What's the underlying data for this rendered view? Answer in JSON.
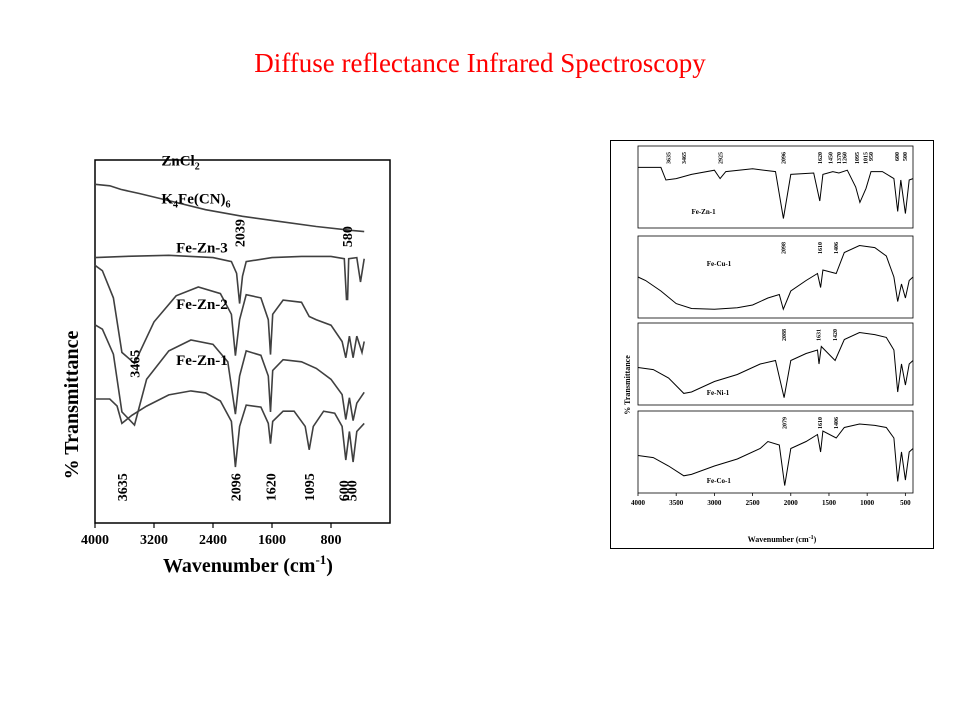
{
  "slide": {
    "title": "Diffuse reflectance Infrared Spectroscopy"
  },
  "chart_data": [
    {
      "type": "line",
      "xlabel": "Wavenumber (cm",
      "xlabel_sup": "-1",
      "xlabel_close": ")",
      "ylabel": "% Transmittance",
      "xlim": [
        4000,
        0
      ],
      "x_ticks": [
        4000,
        3200,
        2400,
        1600,
        800
      ],
      "curve_color": "#404040",
      "series": [
        {
          "name": "ZnCl",
          "name_sub": "2",
          "offset": 0.8,
          "amp": 0.14,
          "points": [
            [
              4000,
              0.95
            ],
            [
              3800,
              0.92
            ],
            [
              3650,
              0.85
            ],
            [
              3400,
              0.77
            ],
            [
              3000,
              0.63
            ],
            [
              2500,
              0.45
            ],
            [
              2000,
              0.32
            ],
            [
              1500,
              0.22
            ],
            [
              1000,
              0.12
            ],
            [
              500,
              0.04
            ],
            [
              350,
              0.02
            ]
          ]
        },
        {
          "name": "K",
          "name_sub": "4",
          "name_rest": "Fe(CN)",
          "name_sub2": "6",
          "offset": 0.6,
          "amp": 0.16,
          "points": [
            [
              4000,
              0.82
            ],
            [
              3600,
              0.84
            ],
            [
              3000,
              0.86
            ],
            [
              2400,
              0.82
            ],
            [
              2150,
              0.75
            ],
            [
              2080,
              0.55
            ],
            [
              2039,
              0.03
            ],
            [
              2000,
              0.5
            ],
            [
              1950,
              0.75
            ],
            [
              1600,
              0.82
            ],
            [
              1200,
              0.84
            ],
            [
              800,
              0.84
            ],
            [
              620,
              0.8
            ],
            [
              590,
              0.1
            ],
            [
              575,
              0.1
            ],
            [
              560,
              0.8
            ],
            [
              450,
              0.82
            ],
            [
              400,
              0.4
            ],
            [
              350,
              0.8
            ]
          ]
        },
        {
          "name": "Fe-Zn-3",
          "offset": 0.44,
          "amp": 0.3,
          "points": [
            [
              4000,
              0.9
            ],
            [
              3900,
              0.85
            ],
            [
              3750,
              0.6
            ],
            [
              3635,
              0.1
            ],
            [
              3465,
              0.0
            ],
            [
              3200,
              0.38
            ],
            [
              2900,
              0.62
            ],
            [
              2600,
              0.7
            ],
            [
              2300,
              0.64
            ],
            [
              2150,
              0.45
            ],
            [
              2096,
              0.07
            ],
            [
              2040,
              0.4
            ],
            [
              1950,
              0.63
            ],
            [
              1750,
              0.6
            ],
            [
              1650,
              0.4
            ],
            [
              1620,
              0.08
            ],
            [
              1590,
              0.45
            ],
            [
              1450,
              0.58
            ],
            [
              1200,
              0.56
            ],
            [
              1095,
              0.43
            ],
            [
              1000,
              0.4
            ],
            [
              800,
              0.35
            ],
            [
              650,
              0.2
            ],
            [
              600,
              0.05
            ],
            [
              550,
              0.25
            ],
            [
              500,
              0.05
            ],
            [
              450,
              0.25
            ],
            [
              380,
              0.1
            ],
            [
              350,
              0.2
            ]
          ]
        },
        {
          "name": "Fe-Zn-2",
          "offset": 0.27,
          "amp": 0.3,
          "points": [
            [
              4000,
              0.92
            ],
            [
              3900,
              0.88
            ],
            [
              3750,
              0.65
            ],
            [
              3635,
              0.12
            ],
            [
              3465,
              0.0
            ],
            [
              3300,
              0.42
            ],
            [
              3000,
              0.68
            ],
            [
              2700,
              0.78
            ],
            [
              2400,
              0.74
            ],
            [
              2200,
              0.58
            ],
            [
              2096,
              0.1
            ],
            [
              2040,
              0.45
            ],
            [
              1950,
              0.68
            ],
            [
              1750,
              0.64
            ],
            [
              1650,
              0.45
            ],
            [
              1620,
              0.12
            ],
            [
              1590,
              0.5
            ],
            [
              1450,
              0.6
            ],
            [
              1200,
              0.58
            ],
            [
              1000,
              0.52
            ],
            [
              800,
              0.42
            ],
            [
              650,
              0.28
            ],
            [
              600,
              0.05
            ],
            [
              550,
              0.25
            ],
            [
              500,
              0.04
            ],
            [
              450,
              0.2
            ],
            [
              350,
              0.3
            ]
          ]
        },
        {
          "name": "Fe-Zn-1",
          "offset": 0.14,
          "amp": 0.28,
          "points": [
            [
              4000,
              0.72
            ],
            [
              3800,
              0.72
            ],
            [
              3700,
              0.65
            ],
            [
              3635,
              0.48
            ],
            [
              3500,
              0.56
            ],
            [
              3300,
              0.65
            ],
            [
              3000,
              0.76
            ],
            [
              2700,
              0.8
            ],
            [
              2500,
              0.78
            ],
            [
              2300,
              0.7
            ],
            [
              2150,
              0.5
            ],
            [
              2096,
              0.05
            ],
            [
              2040,
              0.45
            ],
            [
              1950,
              0.66
            ],
            [
              1750,
              0.64
            ],
            [
              1650,
              0.48
            ],
            [
              1620,
              0.28
            ],
            [
              1590,
              0.5
            ],
            [
              1450,
              0.6
            ],
            [
              1300,
              0.6
            ],
            [
              1150,
              0.45
            ],
            [
              1095,
              0.22
            ],
            [
              1040,
              0.45
            ],
            [
              900,
              0.6
            ],
            [
              750,
              0.58
            ],
            [
              650,
              0.45
            ],
            [
              600,
              0.12
            ],
            [
              550,
              0.4
            ],
            [
              500,
              0.1
            ],
            [
              450,
              0.4
            ],
            [
              350,
              0.48
            ]
          ]
        }
      ],
      "annotations": [
        {
          "text": "2039",
          "x": 2039,
          "y": 0.76
        },
        {
          "text": "580",
          "x": 580,
          "y": 0.76
        },
        {
          "text": "3465",
          "x": 3465,
          "y": 0.4
        },
        {
          "text": "3635",
          "x": 3635,
          "y": 0.06
        },
        {
          "text": "2096",
          "x": 2096,
          "y": 0.06
        },
        {
          "text": "1620",
          "x": 1620,
          "y": 0.06
        },
        {
          "text": "1095",
          "x": 1095,
          "y": 0.06
        },
        {
          "text": "600",
          "x": 630,
          "y": 0.06
        },
        {
          "text": "500",
          "x": 520,
          "y": 0.06
        }
      ]
    },
    {
      "type": "line",
      "xlabel": "Wavenumber (cm",
      "xlabel_sup": "-1",
      "xlabel_close": ")",
      "ylabel": "% Transmittance",
      "xlim": [
        4000,
        400
      ],
      "x_ticks": [
        4000,
        3500,
        3000,
        2500,
        2000,
        1500,
        1000,
        500
      ],
      "curve_color": "#000000",
      "panels": [
        {
          "name": "Fe-Zn-1",
          "points": [
            [
              4000,
              0.78
            ],
            [
              3700,
              0.78
            ],
            [
              3635,
              0.6
            ],
            [
              3500,
              0.62
            ],
            [
              3300,
              0.68
            ],
            [
              3000,
              0.74
            ],
            [
              2925,
              0.62
            ],
            [
              2850,
              0.72
            ],
            [
              2500,
              0.76
            ],
            [
              2200,
              0.72
            ],
            [
              2096,
              0.05
            ],
            [
              2000,
              0.68
            ],
            [
              1700,
              0.7
            ],
            [
              1620,
              0.3
            ],
            [
              1580,
              0.68
            ],
            [
              1450,
              0.72
            ],
            [
              1370,
              0.7
            ],
            [
              1260,
              0.74
            ],
            [
              1150,
              0.5
            ],
            [
              1095,
              0.28
            ],
            [
              1015,
              0.48
            ],
            [
              950,
              0.72
            ],
            [
              800,
              0.72
            ],
            [
              650,
              0.62
            ],
            [
              600,
              0.15
            ],
            [
              560,
              0.6
            ],
            [
              500,
              0.12
            ],
            [
              450,
              0.6
            ],
            [
              400,
              0.62
            ]
          ],
          "labels": [
            {
              "text": "3635",
              "x": 3600
            },
            {
              "text": "3465",
              "x": 3400
            },
            {
              "text": "2925",
              "x": 2920
            },
            {
              "text": "2096",
              "x": 2096
            },
            {
              "text": "1620",
              "x": 1620
            },
            {
              "text": "1450",
              "x": 1480
            },
            {
              "text": "1260",
              "x": 1300
            },
            {
              "text": "1370",
              "x": 1370
            },
            {
              "text": "1095",
              "x": 1130
            },
            {
              "text": "1015",
              "x": 1020
            },
            {
              "text": "950",
              "x": 950
            },
            {
              "text": "600",
              "x": 610
            },
            {
              "text": "500",
              "x": 505
            }
          ]
        },
        {
          "name": "Fe-Cu-1",
          "points": [
            [
              4000,
              0.5
            ],
            [
              3900,
              0.45
            ],
            [
              3700,
              0.3
            ],
            [
              3500,
              0.12
            ],
            [
              3300,
              0.05
            ],
            [
              3000,
              0.04
            ],
            [
              2700,
              0.06
            ],
            [
              2500,
              0.1
            ],
            [
              2300,
              0.2
            ],
            [
              2150,
              0.25
            ],
            [
              2098,
              0.04
            ],
            [
              2000,
              0.3
            ],
            [
              1800,
              0.45
            ],
            [
              1650,
              0.55
            ],
            [
              1610,
              0.35
            ],
            [
              1580,
              0.6
            ],
            [
              1406,
              0.55
            ],
            [
              1300,
              0.85
            ],
            [
              1100,
              0.95
            ],
            [
              900,
              0.92
            ],
            [
              750,
              0.8
            ],
            [
              650,
              0.5
            ],
            [
              600,
              0.15
            ],
            [
              550,
              0.4
            ],
            [
              500,
              0.2
            ],
            [
              450,
              0.45
            ],
            [
              400,
              0.5
            ]
          ],
          "labels": [
            {
              "text": "2098",
              "x": 2098
            },
            {
              "text": "1610",
              "x": 1620
            },
            {
              "text": "1406",
              "x": 1406
            }
          ]
        },
        {
          "name": "Fe-Ni-1",
          "points": [
            [
              4000,
              0.45
            ],
            [
              3800,
              0.42
            ],
            [
              3600,
              0.3
            ],
            [
              3400,
              0.08
            ],
            [
              3300,
              0.1
            ],
            [
              3000,
              0.25
            ],
            [
              2700,
              0.35
            ],
            [
              2400,
              0.5
            ],
            [
              2200,
              0.55
            ],
            [
              2088,
              0.02
            ],
            [
              2000,
              0.55
            ],
            [
              1800,
              0.65
            ],
            [
              1650,
              0.7
            ],
            [
              1631,
              0.5
            ],
            [
              1600,
              0.75
            ],
            [
              1420,
              0.55
            ],
            [
              1300,
              0.85
            ],
            [
              1100,
              0.95
            ],
            [
              900,
              0.92
            ],
            [
              750,
              0.88
            ],
            [
              650,
              0.7
            ],
            [
              600,
              0.1
            ],
            [
              550,
              0.5
            ],
            [
              500,
              0.2
            ],
            [
              450,
              0.5
            ],
            [
              400,
              0.55
            ]
          ],
          "labels": [
            {
              "text": "2088",
              "x": 2088
            },
            {
              "text": "1631",
              "x": 1640
            },
            {
              "text": "1420",
              "x": 1420
            }
          ]
        },
        {
          "name": "Fe-Co-1",
          "points": [
            [
              4000,
              0.45
            ],
            [
              3800,
              0.42
            ],
            [
              3600,
              0.3
            ],
            [
              3400,
              0.16
            ],
            [
              3300,
              0.18
            ],
            [
              3000,
              0.3
            ],
            [
              2700,
              0.4
            ],
            [
              2400,
              0.55
            ],
            [
              2300,
              0.65
            ],
            [
              2150,
              0.6
            ],
            [
              2079,
              0.02
            ],
            [
              2000,
              0.55
            ],
            [
              1800,
              0.65
            ],
            [
              1650,
              0.75
            ],
            [
              1610,
              0.5
            ],
            [
              1580,
              0.8
            ],
            [
              1406,
              0.7
            ],
            [
              1300,
              0.85
            ],
            [
              1100,
              0.9
            ],
            [
              900,
              0.88
            ],
            [
              750,
              0.85
            ],
            [
              650,
              0.7
            ],
            [
              600,
              0.08
            ],
            [
              550,
              0.5
            ],
            [
              500,
              0.1
            ],
            [
              450,
              0.5
            ],
            [
              400,
              0.55
            ]
          ],
          "labels": [
            {
              "text": "2079",
              "x": 2079
            },
            {
              "text": "1610",
              "x": 1620
            },
            {
              "text": "1406",
              "x": 1406
            }
          ]
        }
      ]
    }
  ]
}
